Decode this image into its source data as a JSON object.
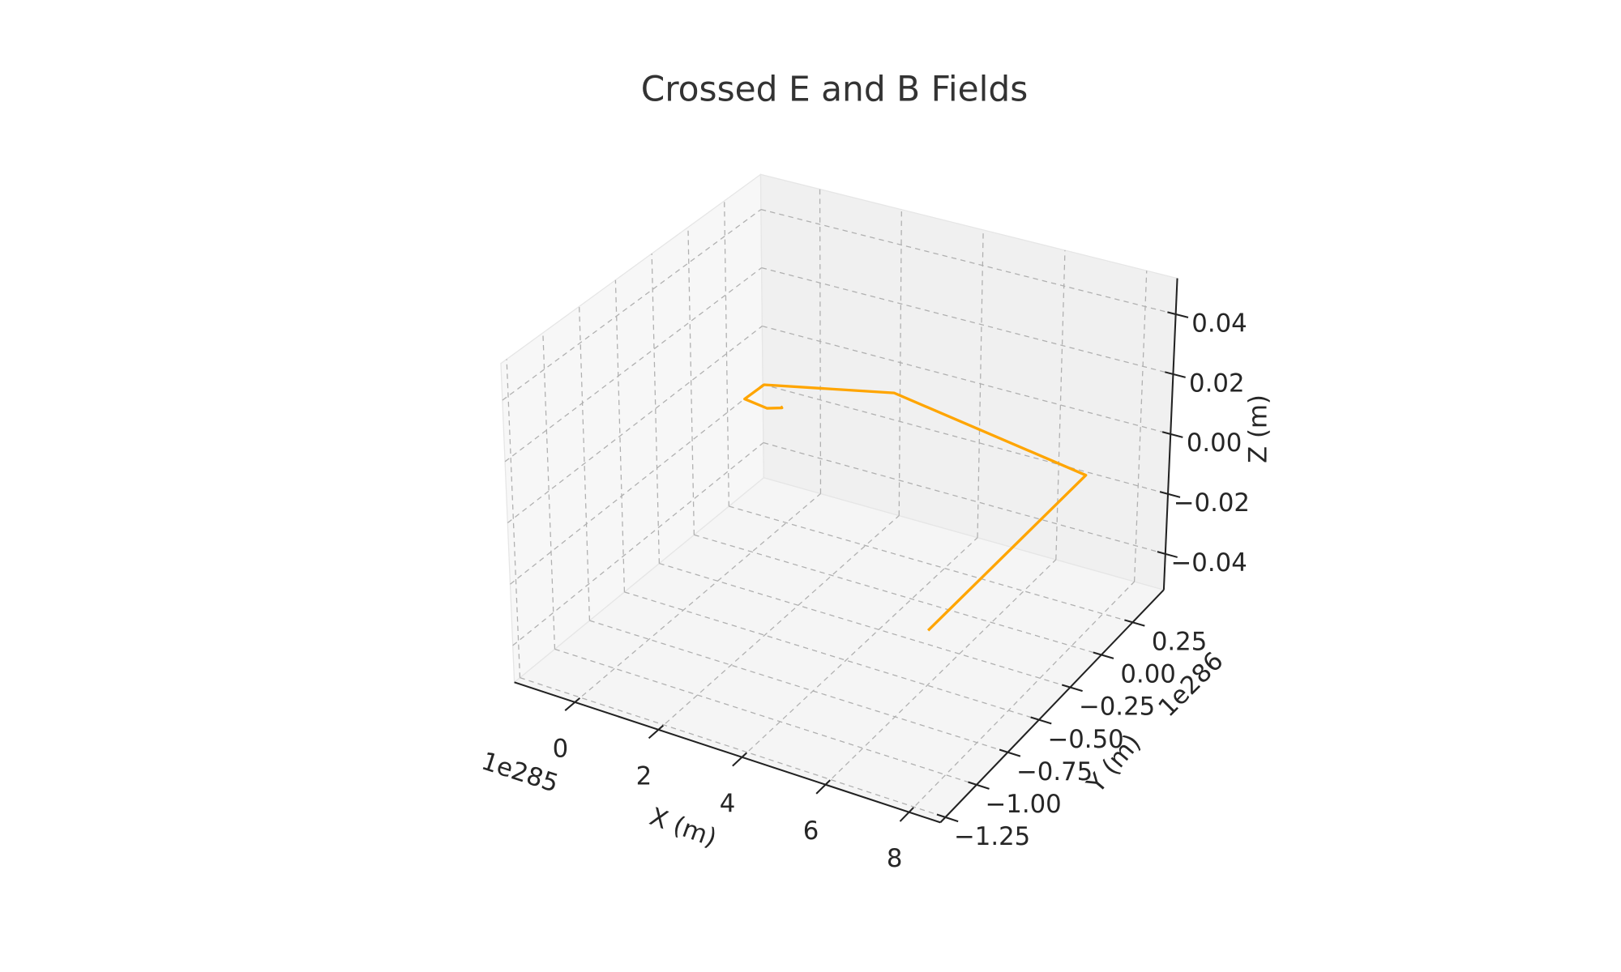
{
  "chart_data": {
    "type": "line3d",
    "title": "Crossed E and B Fields",
    "xlabel": "X (m)",
    "ylabel": "Y (m)",
    "zlabel": "Z (m)",
    "x_offset_label": "1e285",
    "y_offset_label": "1e286",
    "series": [
      {
        "color": "#ffa500",
        "x": [
          0.75,
          0.81,
          0.55,
          -0.07,
          -0.04,
          2.56,
          7.91,
          7.92
        ],
        "y": [
          0.0,
          -0.01,
          -0.04,
          -0.02,
          0.11,
          0.29,
          0.1,
          -1.14
        ],
        "z": [
          0,
          0,
          0,
          0,
          0,
          0,
          0,
          0
        ]
      }
    ],
    "xlim": [
      -1.45,
      8.75
    ],
    "ylim": [
      -1.29,
      0.5
    ],
    "zlim": [
      -0.052,
      0.052
    ],
    "xticks": [
      0,
      2,
      4,
      6,
      8
    ],
    "yticks": [
      {
        "value": -1.25,
        "label": "−1.25"
      },
      {
        "value": -1.0,
        "label": "−1.00"
      },
      {
        "value": -0.75,
        "label": "−0.75"
      },
      {
        "value": -0.5,
        "label": "−0.50"
      },
      {
        "value": -0.25,
        "label": "−0.25"
      },
      {
        "value": 0,
        "label": "0.00"
      },
      0.25
    ],
    "zticks": [
      {
        "value": -0.04,
        "label": "−0.04"
      },
      {
        "value": -0.02,
        "label": "−0.02"
      },
      {
        "value": 0,
        "label": "0.00"
      },
      0.02,
      0.04
    ],
    "grid": true
  }
}
